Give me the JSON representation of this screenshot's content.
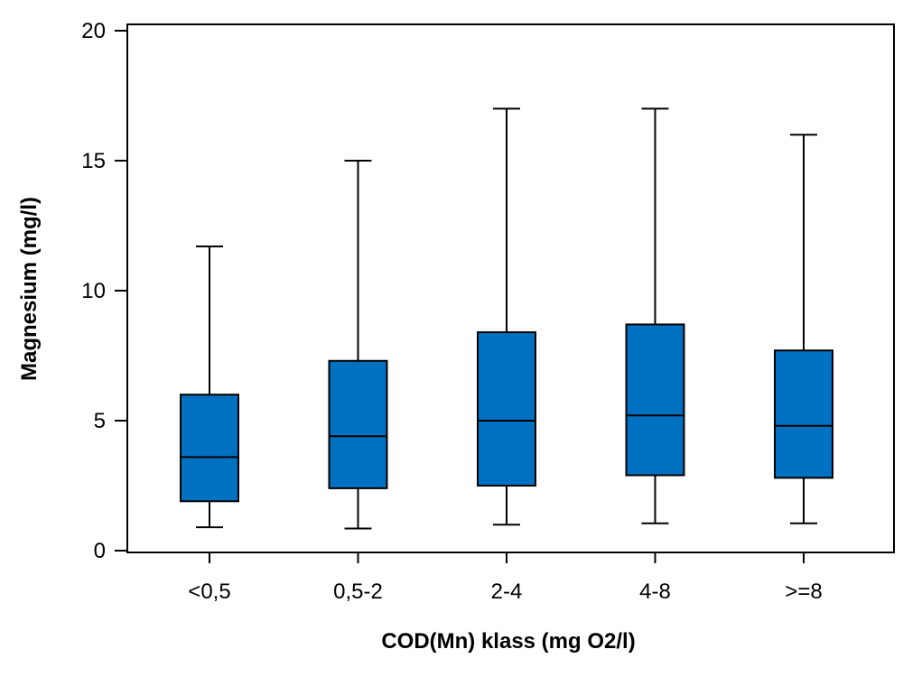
{
  "chart_data": {
    "type": "boxplot",
    "title": "",
    "xlabel": "COD(Mn) klass (mg O2/l)",
    "ylabel": "Magnesium (mg/l)",
    "ylim": [
      0,
      20
    ],
    "yticks": [
      0,
      5,
      10,
      15,
      20
    ],
    "ytick_labels": [
      "0",
      "5",
      "10",
      "15",
      "20"
    ],
    "categories": [
      "<0,5",
      "0,5-2",
      "2-4",
      "4-8",
      ">=8"
    ],
    "boxes": [
      {
        "whisker_low": 0.9,
        "q1": 1.9,
        "median": 3.6,
        "q3": 6.0,
        "whisker_high": 11.7
      },
      {
        "whisker_low": 0.85,
        "q1": 2.4,
        "median": 4.4,
        "q3": 7.3,
        "whisker_high": 15.0
      },
      {
        "whisker_low": 1.0,
        "q1": 2.5,
        "median": 5.0,
        "q3": 8.4,
        "whisker_high": 17.0
      },
      {
        "whisker_low": 1.05,
        "q1": 2.9,
        "median": 5.2,
        "q3": 8.7,
        "whisker_high": 17.0
      },
      {
        "whisker_low": 1.05,
        "q1": 2.8,
        "median": 4.8,
        "q3": 7.7,
        "whisker_high": 16.0
      }
    ],
    "box_color": "#0070C0",
    "line_color": "#000000",
    "grid": false
  }
}
